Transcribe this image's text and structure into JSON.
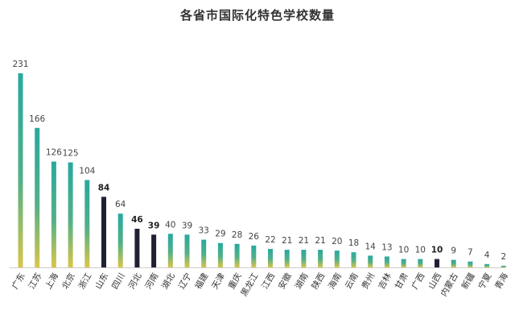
{
  "chart_data": {
    "type": "bar",
    "title": "各省市国际化特色学校数量",
    "categories": [
      "广东",
      "江苏",
      "上海",
      "北京",
      "浙江",
      "山东",
      "四川",
      "河北",
      "河南",
      "湖北",
      "辽宁",
      "福建",
      "天津",
      "重庆",
      "黑龙江",
      "江西",
      "安徽",
      "湖南",
      "陕西",
      "海南",
      "云南",
      "贵州",
      "吉林",
      "甘肃",
      "广西",
      "山西",
      "内蒙古",
      "新疆",
      "宁夏",
      "青海"
    ],
    "values": [
      231,
      166,
      126,
      125,
      104,
      84,
      64,
      46,
      39,
      40,
      39,
      33,
      29,
      28,
      26,
      22,
      21,
      21,
      21,
      20,
      18,
      14,
      13,
      10,
      10,
      10,
      9,
      7,
      4,
      2
    ],
    "highlighted": [
      "山东",
      "河北",
      "河南",
      "山西"
    ],
    "xlabel": "",
    "ylabel": "",
    "ylim": [
      0,
      231
    ],
    "grid": false,
    "legend": "none",
    "colors": {
      "gradient_top": "#27a99f",
      "gradient_bottom": "#d9c64a",
      "highlight": "#1f2133",
      "axis": "#cccccc",
      "label": "#444444"
    }
  }
}
